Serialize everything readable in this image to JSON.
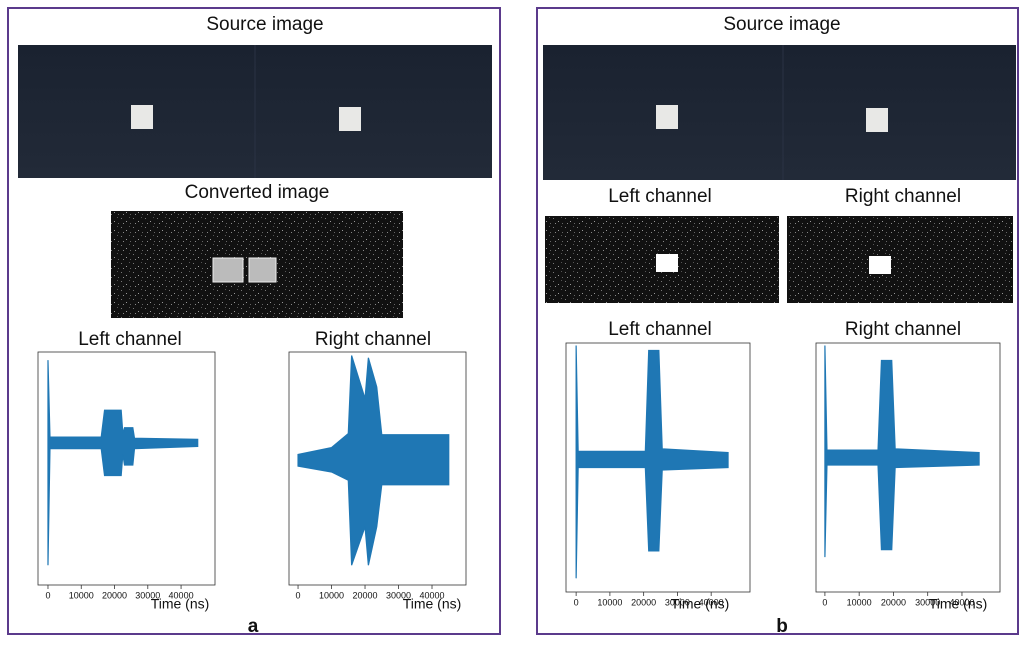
{
  "panels": [
    {
      "label": "a",
      "source_title": "Source image",
      "converted_title": "Converted image",
      "plots": [
        {
          "title": "Left channel",
          "xlabel": "Time (ns)",
          "xlim": [
            -3000,
            50200
          ],
          "xticks": [
            0,
            10000,
            20000,
            30000,
            40000
          ],
          "ylim": [
            -1,
            1
          ],
          "envelope": {
            "x": [
              0,
              600,
              16000,
              17000,
              22000,
              22500,
              23000,
              25500,
              26000,
              45000
            ],
            "hi": [
              0.93,
              0.27,
              0.27,
              0.5,
              0.5,
              0.3,
              0.35,
              0.35,
              0.26,
              0.25
            ],
            "lo": [
              -0.83,
              0.17,
              0.17,
              -0.06,
              -0.06,
              0.12,
              0.03,
              0.03,
              0.17,
              0.19
            ]
          }
        },
        {
          "title": "Right channel",
          "xlabel": "Time (ns)",
          "xlim": [
            -2700,
            50150
          ],
          "xticks": [
            0,
            10000,
            20000,
            30000,
            40000
          ],
          "ylim": [
            -1,
            1
          ],
          "envelope": {
            "x": [
              0,
              10000,
              15000,
              16000,
              20000,
              21000,
              23500,
              25000,
              45000
            ],
            "hi": [
              0.12,
              0.18,
              0.3,
              0.97,
              0.6,
              0.95,
              0.7,
              0.29,
              0.29
            ],
            "lo": [
              0.02,
              -0.03,
              -0.1,
              -0.83,
              -0.5,
              -0.83,
              -0.5,
              -0.14,
              -0.14
            ]
          }
        }
      ]
    },
    {
      "label": "b",
      "source_title": "Source image",
      "channel_titles": [
        "Left channel",
        "Right channel"
      ],
      "plots": [
        {
          "title": "Left channel",
          "xlabel": "Time (ns)",
          "xlim": [
            -3000,
            51500
          ],
          "xticks": [
            0,
            10000,
            20000,
            30000,
            40000
          ],
          "ylim": [
            -1,
            1
          ],
          "envelope": {
            "x": [
              0,
              600,
              20500,
              21500,
              24500,
              25500,
              45000
            ],
            "hi": [
              0.98,
              0.13,
              0.13,
              0.94,
              0.94,
              0.15,
              0.12
            ],
            "lo": [
              -0.89,
              0.0,
              0.0,
              -0.67,
              -0.67,
              -0.02,
              0.0
            ]
          }
        },
        {
          "title": "Right channel",
          "xlabel": "Time (ns)",
          "xlim": [
            -2600,
            51100
          ],
          "xticks": [
            0,
            10000,
            20000,
            30000,
            40000
          ],
          "ylim": [
            -1,
            1
          ],
          "envelope": {
            "x": [
              0,
              600,
              15500,
              16500,
              19500,
              20500,
              45000
            ],
            "hi": [
              0.98,
              0.14,
              0.14,
              0.86,
              0.86,
              0.15,
              0.12
            ],
            "lo": [
              -0.72,
              0.02,
              0.02,
              -0.66,
              -0.66,
              0.0,
              0.02
            ]
          }
        }
      ]
    }
  ]
}
